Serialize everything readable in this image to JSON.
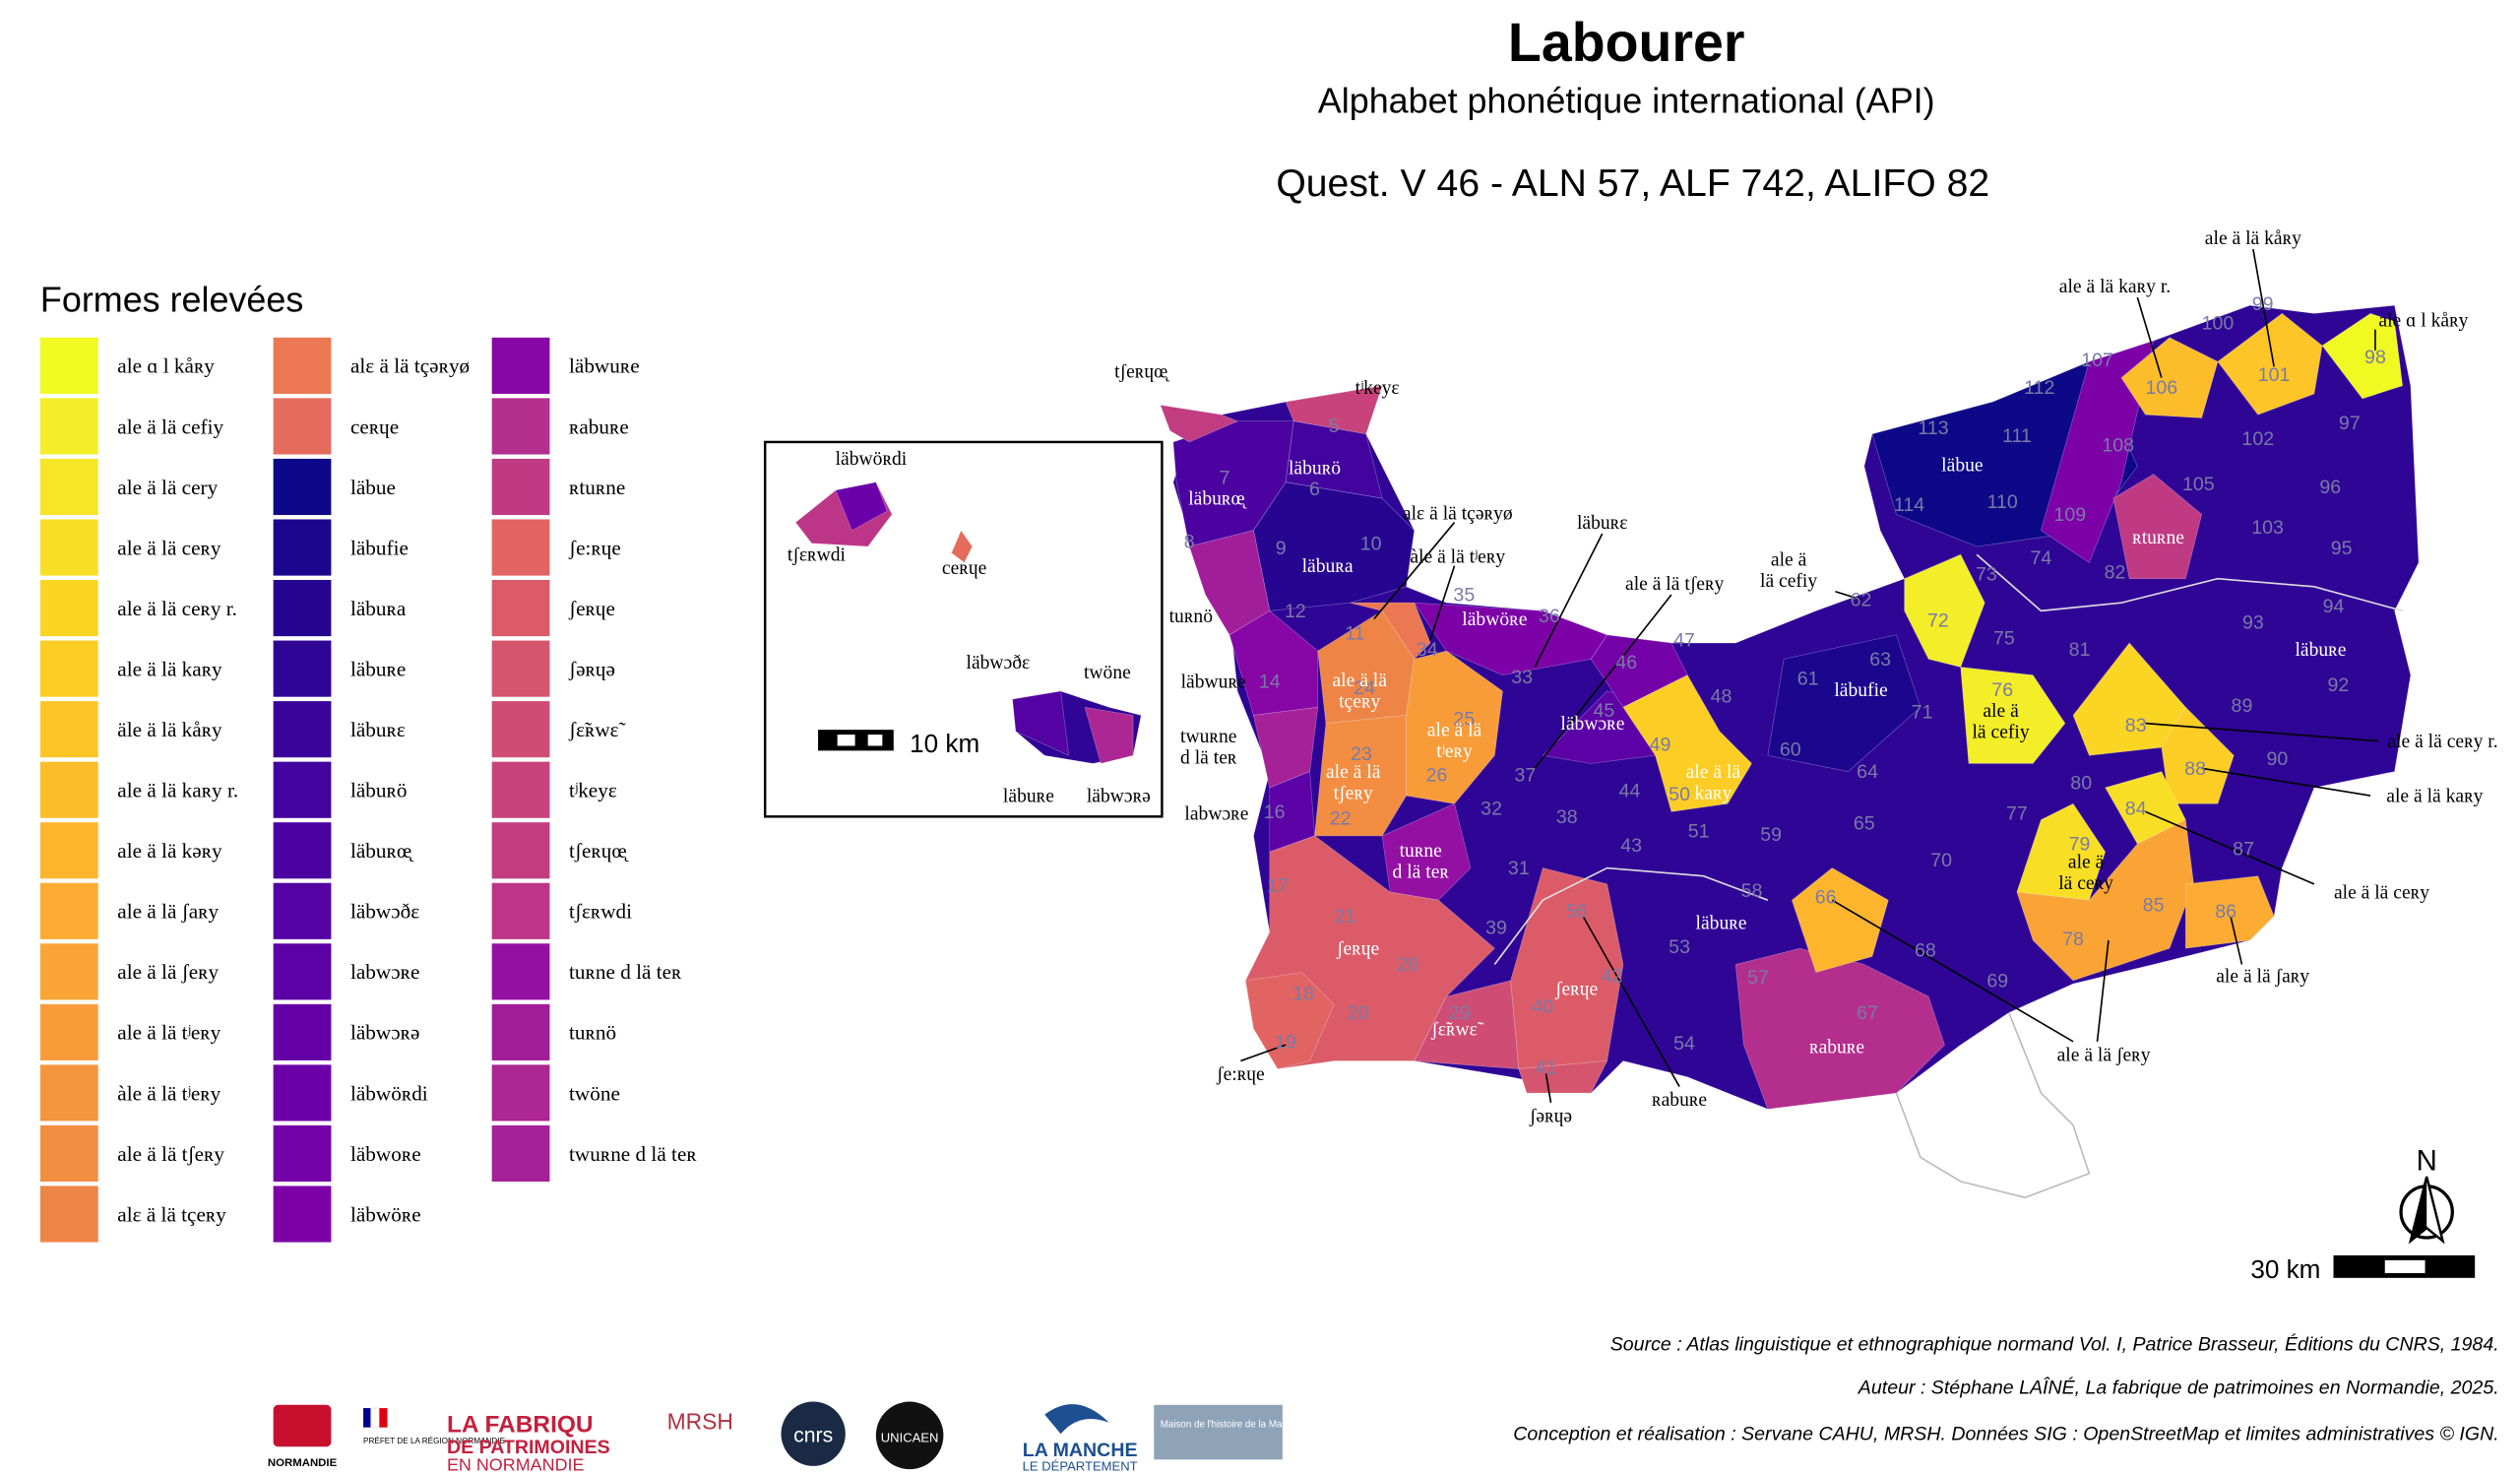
{
  "header": {
    "title": "Labourer",
    "subtitle": "Alphabet phonétique international (API)",
    "question": "Quest. V 46 - ALN 57, ALF 742, ALIFO 82"
  },
  "legend": {
    "title": "Formes relevées",
    "items": [
      {
        "label": "ale ɑ l kåʀy",
        "color": "#f0f921"
      },
      {
        "label": "ale ä lä cefiy",
        "color": "#f3ee27"
      },
      {
        "label": "ale ä lä cery",
        "color": "#f6e626"
      },
      {
        "label": "ale ä lä ceʀy",
        "color": "#f8df25"
      },
      {
        "label": "ale ä lä ceʀy r.",
        "color": "#fbd524"
      },
      {
        "label": "ale ä lä kaʀy",
        "color": "#fccd25"
      },
      {
        "label": "äle ä lä kåʀy",
        "color": "#fdc527"
      },
      {
        "label": "ale ä lä kaʀy r.",
        "color": "#fdbd2a"
      },
      {
        "label": "ale ä lä kəʀy",
        "color": "#fdb52e"
      },
      {
        "label": "ale ä lä ʃaʀy",
        "color": "#fcac32"
      },
      {
        "label": "ale ä lä ʃeʀy",
        "color": "#faa435"
      },
      {
        "label": "ale ä lä tʲeʀy",
        "color": "#f89c3a"
      },
      {
        "label": "àle ä lä tʲeʀy",
        "color": "#f5953e"
      },
      {
        "label": "ale ä lä tʃeʀy",
        "color": "#f28d42"
      },
      {
        "label": "alɛ ä lä tçeʀy",
        "color": "#ee8547"
      },
      {
        "label": "alɛ ä lä tçəʀyø",
        "color": "#eb7852"
      },
      {
        "label": "ceʀɥe",
        "color": "#e56b5d"
      },
      {
        "label": "läbue",
        "color": "#0d0887"
      },
      {
        "label": "läbufie",
        "color": "#1b068d"
      },
      {
        "label": "läbuʀa",
        "color": "#260591"
      },
      {
        "label": "läbuʀe",
        "color": "#2f0596"
      },
      {
        "label": "läbuʀɛ",
        "color": "#3a049a"
      },
      {
        "label": "läbuʀö",
        "color": "#43039e"
      },
      {
        "label": "läbuʀœ̨",
        "color": "#4c02a1"
      },
      {
        "label": "läbwɔðɛ",
        "color": "#5402a3"
      },
      {
        "label": "labwɔʀe",
        "color": "#5c01a6"
      },
      {
        "label": "läbwɔʀə",
        "color": "#6500a7"
      },
      {
        "label": "läbwöʀdi",
        "color": "#6c00a8"
      },
      {
        "label": "läbwoʀe",
        "color": "#7401a8"
      },
      {
        "label": "läbwöʀe",
        "color": "#7c02a8"
      },
      {
        "label": "läbwuʀe",
        "color": "#8606a6"
      },
      {
        "label": "ʀabuʀe",
        "color": "#b42e8d"
      },
      {
        "label": "ʀtuʀne",
        "color": "#c03a83"
      },
      {
        "label": "ʃe:ʀɥe",
        "color": "#e16462"
      },
      {
        "label": "ʃeʀɥe",
        "color": "#db5c68"
      },
      {
        "label": "ʃəʀɥə",
        "color": "#d5546e"
      },
      {
        "label": "ʃɛ̃ʀwɛ̃",
        "color": "#cf4c74"
      },
      {
        "label": "tʲkeyɛ",
        "color": "#c8437b"
      },
      {
        "label": "tʃeʀɥœ̨",
        "color": "#c23c81"
      },
      {
        "label": "tʃɛʀwdi",
        "color": "#bc3587"
      },
      {
        "label": "tuʀne d lä teʀ",
        "color": "#9410a2"
      },
      {
        "label": "tuʀnö",
        "color": "#a21d9a"
      },
      {
        "label": "twöne",
        "color": "#ac2694"
      },
      {
        "label": "twuʀne d lä teʀ",
        "color": "#a62098"
      }
    ]
  },
  "map": {
    "points": [
      5,
      6,
      7,
      8,
      9,
      10,
      11,
      12,
      14,
      16,
      17,
      18,
      19,
      20,
      21,
      22,
      23,
      24,
      25,
      26,
      28,
      29,
      31,
      32,
      33,
      34,
      35,
      36,
      37,
      38,
      39,
      40,
      41,
      42,
      43,
      44,
      45,
      46,
      47,
      48,
      49,
      50,
      51,
      53,
      54,
      56,
      57,
      58,
      59,
      60,
      61,
      62,
      63,
      64,
      65,
      66,
      67,
      68,
      69,
      70,
      71,
      72,
      73,
      74,
      75,
      76,
      77,
      78,
      79,
      80,
      81,
      82,
      83,
      84,
      85,
      86,
      87,
      88,
      89,
      90,
      92,
      93,
      94,
      95,
      96,
      97,
      98,
      99,
      100,
      101,
      102,
      103,
      105,
      106,
      107,
      108,
      109,
      110,
      111,
      112,
      113,
      114
    ],
    "labels": [
      {
        "lines": [
          "läbuʀö"
        ]
      },
      {
        "lines": [
          "läbuʀœ̨"
        ]
      },
      {
        "lines": [
          "läbuʀa"
        ]
      },
      {
        "lines": [
          "läbwöʀe"
        ]
      },
      {
        "lines": [
          "ale ä lä",
          "tçeʀy"
        ]
      },
      {
        "lines": [
          "ale ä lä",
          "tʲeʀy"
        ]
      },
      {
        "lines": [
          "ale ä lä",
          "tʃeʀy"
        ]
      },
      {
        "lines": [
          "tuʀne",
          "d lä teʀ"
        ]
      },
      {
        "lines": [
          "ʃeʀɥe"
        ]
      },
      {
        "lines": [
          "ʃɛ̃ʀwɛ̃"
        ]
      },
      {
        "lines": [
          "ʃeʀɥe"
        ]
      },
      {
        "lines": [
          "läbwɔʀe"
        ]
      },
      {
        "lines": [
          "ale ä lä",
          "kaʀy"
        ]
      },
      {
        "lines": [
          "läbuʀe"
        ]
      },
      {
        "lines": [
          "ʀabuʀe"
        ]
      },
      {
        "lines": [
          "läbufie"
        ]
      },
      {
        "lines": [
          "läbue"
        ]
      },
      {
        "lines": [
          "ale ä",
          "lä cefiy"
        ]
      },
      {
        "lines": [
          "ʀtuʀne"
        ]
      },
      {
        "lines": [
          "läbuʀe"
        ]
      },
      {
        "lines": [
          "ale ä",
          "lä ceʀy"
        ]
      },
      {
        "lines": [
          "tʃeʀɥœ̨"
        ]
      },
      {
        "lines": [
          "tʲkeyɛ"
        ]
      },
      {
        "lines": [
          "alɛ ä lä tçəʀyø"
        ]
      },
      {
        "lines": [
          "àle ä lä tʲeʀy"
        ]
      },
      {
        "lines": [
          "läbuʀɛ"
        ]
      },
      {
        "lines": [
          "ale ä lä tʃeʀy"
        ]
      },
      {
        "lines": [
          "ale ä",
          "lä cefiy"
        ]
      },
      {
        "lines": [
          "tuʀnö"
        ]
      },
      {
        "lines": [
          "läbwuʀe"
        ]
      },
      {
        "lines": [
          "twuʀne",
          "d lä teʀ"
        ]
      },
      {
        "lines": [
          "labwɔʀe"
        ]
      },
      {
        "lines": [
          "ʃe:ʀɥe"
        ]
      },
      {
        "lines": [
          "ʃəʀɥə"
        ]
      },
      {
        "lines": [
          "ʀabuʀe"
        ]
      },
      {
        "lines": [
          "ale ä lä ʃeʀy"
        ]
      },
      {
        "lines": [
          "ale ä lä ʃaʀy"
        ]
      },
      {
        "lines": [
          "ale ä lä ceʀy"
        ]
      },
      {
        "lines": [
          "ale ä lä kaʀy"
        ]
      },
      {
        "lines": [
          "ale ä lä ceʀy r."
        ]
      },
      {
        "lines": [
          "ale ɑ l kåʀy"
        ]
      },
      {
        "lines": [
          "ale ä lä kåʀy"
        ]
      },
      {
        "lines": [
          "ale ä lä kaʀy r."
        ]
      }
    ],
    "inset_labels": [
      "läbwöʀdi",
      "tʃɛʀwdi",
      "ceʀɥe",
      "läbwɔðɛ",
      "twöne",
      "läbuʀe",
      "läbwɔʀə"
    ],
    "inset_scale": "10 km",
    "scale": "30 km",
    "north": "N"
  },
  "footer": {
    "source": "Source : Atlas linguistique et ethnographique normand Vol. I, Patrice Brasseur, Éditions du CNRS, 1984.",
    "author": "Auteur : Stéphane LAÎNÉ, La fabrique de patrimoines en Normandie, 2025.",
    "credits": "Conception et réalisation : Servane CAHU, MRSH. Données SIG : OpenStreetMap et limites administratives © IGN.",
    "logos": [
      "NORMANDIE",
      "PRÉFET DE LA RÉGION NORMANDIE",
      "LA FABRIQU",
      "DE PATRIMOINES",
      "EN NORMANDIE",
      "MRSH",
      "cnrs",
      "UNICAEN",
      "LA MANCHE",
      "LE DÉPARTEMENT",
      "Maison de l'histoire de la Manche"
    ]
  }
}
